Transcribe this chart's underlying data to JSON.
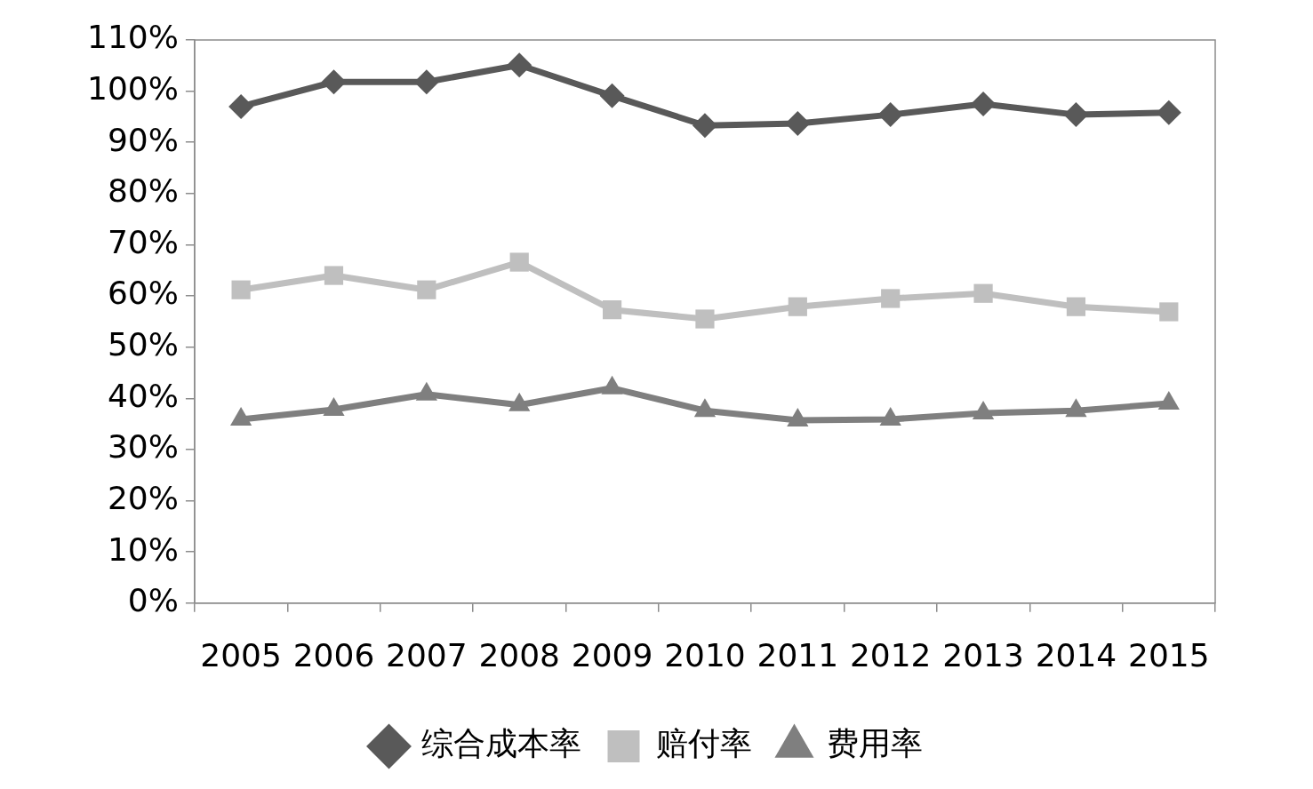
{
  "chart_data": {
    "type": "line",
    "categories": [
      "2005",
      "2006",
      "2007",
      "2008",
      "2009",
      "2010",
      "2011",
      "2012",
      "2013",
      "2014",
      "2015"
    ],
    "series": [
      {
        "name": "综合成本率",
        "color": "#595959",
        "marker": "diamond",
        "values": [
          97.0,
          101.8,
          101.8,
          105.1,
          99.1,
          93.3,
          93.7,
          95.4,
          97.5,
          95.4,
          95.8
        ]
      },
      {
        "name": "赔付率",
        "color": "#bfbfbf",
        "marker": "square",
        "values": [
          61.2,
          64.0,
          61.2,
          66.6,
          57.3,
          55.5,
          57.9,
          59.5,
          60.5,
          57.9,
          56.9
        ]
      },
      {
        "name": "费用率",
        "color": "#7f7f7f",
        "marker": "triangle",
        "values": [
          35.9,
          37.8,
          40.8,
          38.7,
          42.0,
          37.6,
          35.7,
          35.9,
          37.1,
          37.6,
          39.0
        ]
      }
    ],
    "ylim": [
      0,
      110
    ],
    "yticks": [
      {
        "value": 0,
        "label": "0%"
      },
      {
        "value": 10,
        "label": "10%"
      },
      {
        "value": 20,
        "label": "20%"
      },
      {
        "value": 30,
        "label": "30%"
      },
      {
        "value": 40,
        "label": "40%"
      },
      {
        "value": 50,
        "label": "50%"
      },
      {
        "value": 60,
        "label": "60%"
      },
      {
        "value": 70,
        "label": "70%"
      },
      {
        "value": 80,
        "label": "80%"
      },
      {
        "value": 90,
        "label": "90%"
      },
      {
        "value": 100,
        "label": "100%"
      },
      {
        "value": 110,
        "label": "110%"
      }
    ],
    "grid": false,
    "legend": "bottom",
    "line_style": "solid"
  }
}
